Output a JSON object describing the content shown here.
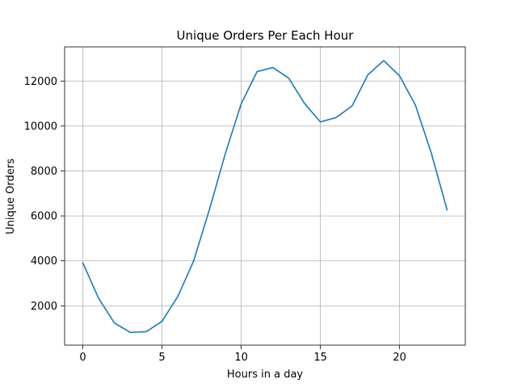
{
  "chart_data": {
    "type": "line",
    "title": "Unique Orders Per Each Hour",
    "xlabel": "Hours in a day",
    "ylabel": "Unique Orders",
    "xlim": [
      -1.15,
      24.15
    ],
    "ylim": [
      250,
      13520
    ],
    "xticks": [
      0,
      5,
      10,
      15,
      20
    ],
    "yticks": [
      2000,
      4000,
      6000,
      8000,
      10000,
      12000
    ],
    "grid": true,
    "series": [
      {
        "x": [
          0,
          1,
          2,
          3,
          4,
          5,
          6,
          7,
          8,
          9,
          10,
          11,
          12,
          13,
          14,
          15,
          16,
          17,
          18,
          19,
          20,
          21,
          22,
          23
        ],
        "values": [
          3910,
          2330,
          1230,
          820,
          850,
          1310,
          2420,
          4000,
          6300,
          8780,
          10990,
          12420,
          12600,
          12130,
          11000,
          10180,
          10380,
          10890,
          12280,
          12910,
          12230,
          10930,
          8800,
          6270
        ],
        "color": "#1f77b4"
      }
    ]
  }
}
